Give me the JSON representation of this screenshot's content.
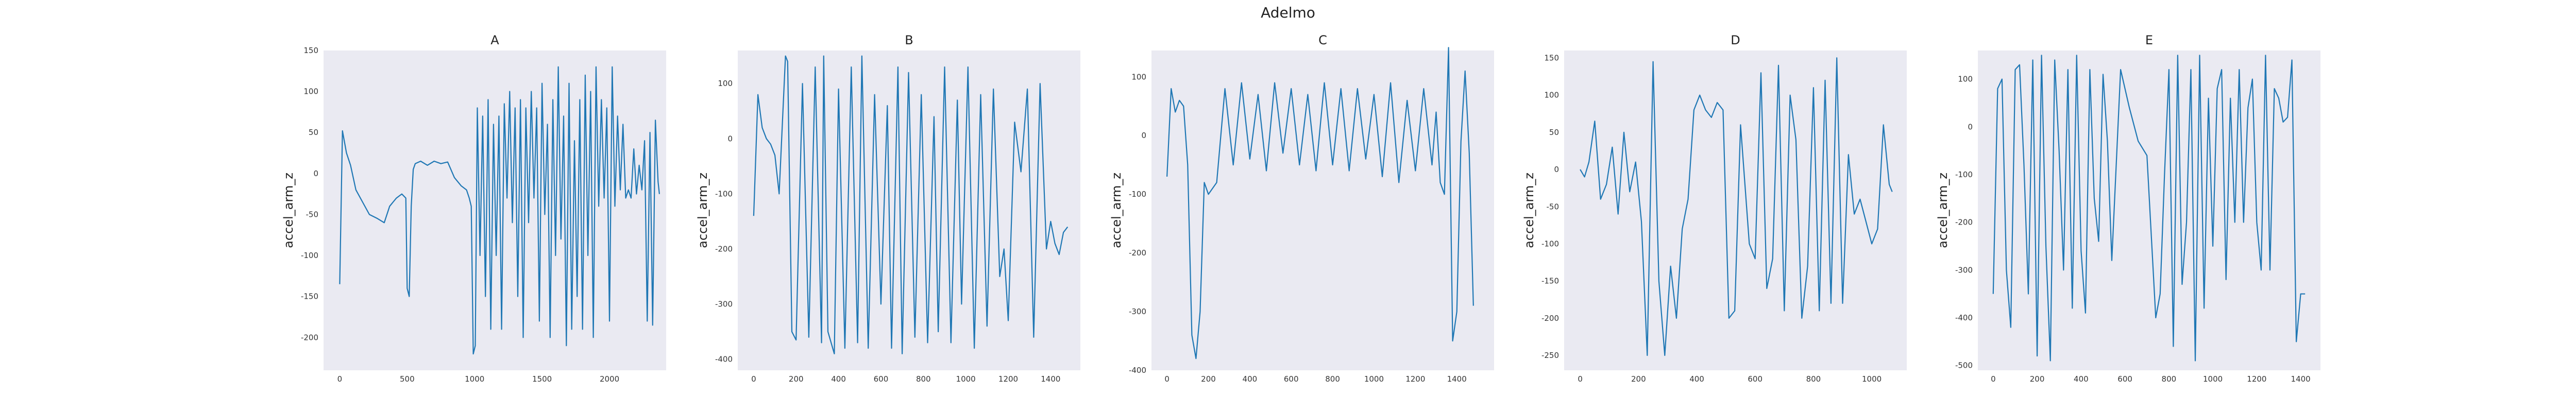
{
  "figure": {
    "title": "Adelmo"
  },
  "chart_data": [
    {
      "type": "line",
      "title": "A",
      "xlabel": "",
      "ylabel": "accel_arm_z",
      "xlim": [
        -120,
        2420
      ],
      "ylim": [
        -240,
        150
      ],
      "xticks": [
        0,
        500,
        1000,
        1500,
        2000
      ],
      "yticks": [
        -200,
        -150,
        -100,
        -50,
        0,
        50,
        100,
        150
      ],
      "grid": false,
      "color": "#1f77b4",
      "series": [
        {
          "x": [
            0,
            20,
            50,
            80,
            120,
            170,
            220,
            280,
            330,
            370,
            420,
            460,
            490,
            500,
            515,
            530,
            545,
            560,
            600,
            650,
            700,
            750,
            800,
            850,
            900,
            940,
            960,
            975,
            990,
            1005,
            1020,
            1040,
            1060,
            1080,
            1100,
            1120,
            1140,
            1160,
            1180,
            1200,
            1220,
            1240,
            1260,
            1280,
            1300,
            1320,
            1340,
            1360,
            1380,
            1400,
            1420,
            1440,
            1460,
            1480,
            1500,
            1520,
            1540,
            1560,
            1580,
            1600,
            1620,
            1640,
            1660,
            1680,
            1700,
            1720,
            1740,
            1760,
            1780,
            1800,
            1820,
            1840,
            1860,
            1880,
            1900,
            1920,
            1940,
            1960,
            1980,
            2000,
            2020,
            2040,
            2060,
            2080,
            2100,
            2120,
            2140,
            2160,
            2180,
            2200,
            2220,
            2240,
            2260,
            2280,
            2300,
            2320,
            2340,
            2360,
            2370
          ],
          "y": [
            -135,
            52,
            25,
            10,
            -20,
            -35,
            -50,
            -55,
            -60,
            -40,
            -30,
            -25,
            -30,
            -140,
            -150,
            -40,
            5,
            12,
            15,
            10,
            15,
            12,
            14,
            -5,
            -15,
            -20,
            -30,
            -40,
            -220,
            -210,
            80,
            -100,
            70,
            -150,
            90,
            -190,
            60,
            -100,
            70,
            -190,
            85,
            -30,
            100,
            -60,
            80,
            -150,
            90,
            -200,
            80,
            -60,
            100,
            -30,
            80,
            -180,
            110,
            -50,
            60,
            -200,
            90,
            -100,
            130,
            -80,
            70,
            -210,
            110,
            -190,
            40,
            -150,
            90,
            -190,
            120,
            -100,
            100,
            -200,
            130,
            -40,
            90,
            -30,
            80,
            -180,
            130,
            -40,
            70,
            -20,
            60,
            -30,
            -20,
            -30,
            30,
            -25,
            10,
            -20,
            40,
            -180,
            50,
            -185,
            65,
            -10,
            -25
          ]
        }
      ]
    },
    {
      "type": "line",
      "title": "B",
      "xlabel": "",
      "ylabel": "accel_arm_z",
      "xlim": [
        -75,
        1540
      ],
      "ylim": [
        -420,
        160
      ],
      "xticks": [
        0,
        200,
        400,
        600,
        800,
        1000,
        1200,
        1400
      ],
      "yticks": [
        -400,
        -300,
        -200,
        -100,
        0,
        100
      ],
      "grid": false,
      "color": "#1f77b4",
      "series": [
        {
          "x": [
            0,
            20,
            40,
            60,
            80,
            100,
            120,
            150,
            160,
            180,
            200,
            230,
            260,
            290,
            320,
            330,
            350,
            380,
            400,
            430,
            460,
            490,
            510,
            540,
            570,
            600,
            630,
            650,
            680,
            700,
            730,
            760,
            790,
            820,
            850,
            870,
            900,
            930,
            960,
            980,
            1010,
            1040,
            1070,
            1100,
            1130,
            1160,
            1180,
            1200,
            1230,
            1260,
            1290,
            1320,
            1350,
            1380,
            1400,
            1420,
            1440,
            1460,
            1480
          ],
          "y": [
            -140,
            80,
            20,
            0,
            -10,
            -30,
            -100,
            150,
            140,
            -350,
            -365,
            100,
            -360,
            130,
            -370,
            150,
            -350,
            -390,
            90,
            -380,
            130,
            -370,
            150,
            -380,
            80,
            -300,
            60,
            -380,
            130,
            -390,
            120,
            -360,
            80,
            -370,
            40,
            -350,
            130,
            -370,
            70,
            -300,
            130,
            -380,
            80,
            -340,
            90,
            -250,
            -200,
            -330,
            30,
            -60,
            90,
            -360,
            100,
            -200,
            -150,
            -190,
            -210,
            -170,
            -160
          ]
        }
      ]
    },
    {
      "type": "line",
      "title": "C",
      "xlabel": "",
      "ylabel": "accel_arm_z",
      "xlim": [
        -75,
        1580
      ],
      "ylim": [
        -400,
        145
      ],
      "xticks": [
        0,
        200,
        400,
        600,
        800,
        1000,
        1200,
        1400
      ],
      "yticks": [
        -400,
        -300,
        -200,
        -100,
        0,
        100
      ],
      "grid": false,
      "color": "#1f77b4",
      "series": [
        {
          "x": [
            0,
            20,
            40,
            60,
            80,
            100,
            120,
            140,
            160,
            180,
            200,
            240,
            280,
            320,
            360,
            400,
            440,
            480,
            520,
            560,
            600,
            640,
            680,
            720,
            760,
            800,
            840,
            880,
            920,
            960,
            1000,
            1040,
            1080,
            1120,
            1160,
            1200,
            1240,
            1280,
            1300,
            1320,
            1340,
            1360,
            1380,
            1400,
            1420,
            1440,
            1460,
            1480
          ],
          "y": [
            -70,
            80,
            40,
            60,
            50,
            -50,
            -340,
            -380,
            -300,
            -80,
            -100,
            -80,
            80,
            -50,
            90,
            -40,
            70,
            -60,
            90,
            -30,
            80,
            -50,
            70,
            -60,
            90,
            -50,
            80,
            -60,
            80,
            -40,
            70,
            -70,
            90,
            -80,
            60,
            -60,
            80,
            -50,
            40,
            -80,
            -100,
            150,
            -350,
            -300,
            -10,
            110,
            -30,
            -290
          ]
        }
      ]
    },
    {
      "type": "line",
      "title": "D",
      "xlabel": "",
      "ylabel": "accel_arm_z",
      "xlim": [
        -55,
        1120
      ],
      "ylim": [
        -270,
        160
      ],
      "xticks": [
        0,
        200,
        400,
        600,
        800,
        1000
      ],
      "yticks": [
        -250,
        -200,
        -150,
        -100,
        -50,
        0,
        50,
        100,
        150
      ],
      "grid": false,
      "color": "#1f77b4",
      "series": [
        {
          "x": [
            0,
            15,
            30,
            50,
            70,
            90,
            110,
            130,
            150,
            170,
            190,
            210,
            230,
            250,
            270,
            290,
            310,
            330,
            350,
            370,
            390,
            410,
            430,
            450,
            470,
            490,
            510,
            530,
            550,
            580,
            600,
            620,
            640,
            660,
            680,
            700,
            720,
            740,
            760,
            780,
            800,
            820,
            840,
            860,
            880,
            900,
            920,
            940,
            960,
            980,
            1000,
            1020,
            1040,
            1060,
            1070
          ],
          "y": [
            0,
            -10,
            10,
            65,
            -40,
            -20,
            30,
            -60,
            50,
            -30,
            10,
            -70,
            -250,
            145,
            -150,
            -250,
            -130,
            -200,
            -80,
            -40,
            80,
            100,
            80,
            70,
            90,
            80,
            -200,
            -190,
            60,
            -100,
            -120,
            130,
            -160,
            -120,
            140,
            -190,
            100,
            40,
            -200,
            -130,
            110,
            -190,
            120,
            -180,
            150,
            -180,
            20,
            -60,
            -40,
            -70,
            -100,
            -80,
            60,
            -20,
            -30
          ]
        }
      ]
    },
    {
      "type": "line",
      "title": "E",
      "xlabel": "",
      "ylabel": "accel_arm_z",
      "xlim": [
        -70,
        1490
      ],
      "ylim": [
        -510,
        160
      ],
      "xticks": [
        0,
        200,
        400,
        600,
        800,
        1000,
        1200,
        1400
      ],
      "yticks": [
        -500,
        -400,
        -300,
        -200,
        -100,
        0,
        100
      ],
      "grid": false,
      "color": "#1f77b4",
      "series": [
        {
          "x": [
            0,
            20,
            40,
            60,
            80,
            100,
            120,
            140,
            160,
            180,
            200,
            220,
            240,
            260,
            280,
            300,
            320,
            340,
            360,
            380,
            400,
            420,
            440,
            460,
            480,
            500,
            520,
            540,
            580,
            620,
            660,
            700,
            740,
            760,
            780,
            800,
            820,
            840,
            860,
            880,
            900,
            920,
            940,
            960,
            980,
            1000,
            1020,
            1040,
            1060,
            1080,
            1100,
            1120,
            1140,
            1160,
            1180,
            1200,
            1220,
            1240,
            1260,
            1280,
            1300,
            1320,
            1340,
            1360,
            1380,
            1400,
            1420
          ],
          "y": [
            -350,
            80,
            100,
            -300,
            -420,
            120,
            130,
            -80,
            -350,
            140,
            -480,
            150,
            -250,
            -490,
            140,
            -50,
            -300,
            120,
            -380,
            150,
            -260,
            -390,
            120,
            -150,
            -240,
            110,
            -30,
            -280,
            120,
            40,
            -30,
            -60,
            -400,
            -350,
            -100,
            120,
            -460,
            150,
            -330,
            -200,
            120,
            -490,
            150,
            -380,
            60,
            -250,
            80,
            120,
            -320,
            60,
            -200,
            120,
            -200,
            40,
            100,
            -200,
            -300,
            150,
            -300,
            80,
            60,
            10,
            20,
            140,
            -450,
            -350,
            -350
          ]
        }
      ]
    }
  ]
}
